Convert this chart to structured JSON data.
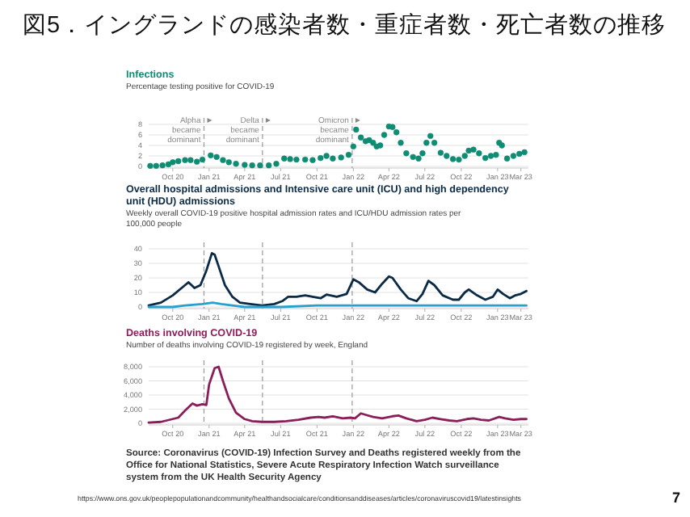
{
  "chart_data": [
    {
      "type": "other",
      "title": "図5．イングランドの感染者数・重症者数・死亡者数の推移"
    },
    {
      "type": "scatter",
      "title": "Infections",
      "subtitle": "Percentage testing positive for COVID-19",
      "xlim": [
        "2020-08-01",
        "2023-03-20"
      ],
      "xticks": [
        {
          "value": "2020-10-01",
          "label": "Oct 20"
        },
        {
          "value": "2021-01-01",
          "label": "Jan 21"
        },
        {
          "value": "2021-04-01",
          "label": "Apr 21"
        },
        {
          "value": "2021-07-01",
          "label": "Jul 21"
        },
        {
          "value": "2021-10-01",
          "label": "Oct 21"
        },
        {
          "value": "2022-01-01",
          "label": "Jan 22"
        },
        {
          "value": "2022-04-01",
          "label": "Apr 22"
        },
        {
          "value": "2022-07-01",
          "label": "Jul 22"
        },
        {
          "value": "2022-10-01",
          "label": "Oct 22"
        },
        {
          "value": "2023-01-01",
          "label": "Jan 23"
        },
        {
          "value": "2023-03-01",
          "label": "Mar 23"
        }
      ],
      "ylim": [
        0,
        8
      ],
      "yticks": [
        0,
        2,
        4,
        6,
        8
      ],
      "grid": "y",
      "marker": "circle",
      "ref_lines": [
        {
          "axis": "x",
          "value": "2020-12-19",
          "label": "Alpha became dominant",
          "line_style": "dashed",
          "color": "#999999"
        },
        {
          "axis": "x",
          "value": "2021-05-16",
          "label": "Delta became dominant",
          "line_style": "dashed",
          "color": "#999999"
        },
        {
          "axis": "x",
          "value": "2021-12-29",
          "label": "Omicron became dominant",
          "line_style": "dashed",
          "color": "#999999"
        }
      ],
      "series": [
        {
          "color": "#0f8c74",
          "x": [
            "2020-08-05",
            "2020-08-20",
            "2020-09-05",
            "2020-09-20",
            "2020-10-01",
            "2020-10-15",
            "2020-11-01",
            "2020-11-15",
            "2020-12-01",
            "2020-12-15",
            "2021-01-05",
            "2021-01-20",
            "2021-02-05",
            "2021-02-20",
            "2021-03-10",
            "2021-04-01",
            "2021-04-20",
            "2021-05-10",
            "2021-06-01",
            "2021-06-20",
            "2021-07-10",
            "2021-07-25",
            "2021-08-10",
            "2021-09-01",
            "2021-09-20",
            "2021-10-10",
            "2021-10-25",
            "2021-11-10",
            "2021-12-01",
            "2021-12-20",
            "2022-01-01",
            "2022-01-08",
            "2022-01-20",
            "2022-02-01",
            "2022-02-10",
            "2022-02-20",
            "2022-03-01",
            "2022-03-10",
            "2022-03-20",
            "2022-04-01",
            "2022-04-10",
            "2022-04-20",
            "2022-05-01",
            "2022-05-15",
            "2022-06-01",
            "2022-06-15",
            "2022-06-25",
            "2022-07-05",
            "2022-07-15",
            "2022-07-25",
            "2022-08-10",
            "2022-08-25",
            "2022-09-10",
            "2022-09-25",
            "2022-10-10",
            "2022-10-20",
            "2022-11-01",
            "2022-11-15",
            "2022-12-01",
            "2022-12-15",
            "2022-12-28",
            "2023-01-05",
            "2023-01-12",
            "2023-01-25",
            "2023-02-10",
            "2023-02-25",
            "2023-03-10"
          ],
          "values": [
            0.1,
            0.1,
            0.2,
            0.4,
            0.8,
            1.0,
            1.2,
            1.2,
            0.9,
            1.3,
            2.1,
            1.8,
            1.2,
            0.8,
            0.5,
            0.3,
            0.2,
            0.2,
            0.2,
            0.5,
            1.5,
            1.4,
            1.3,
            1.3,
            1.2,
            1.6,
            2.0,
            1.5,
            1.7,
            2.2,
            3.8,
            7.0,
            5.5,
            4.8,
            5.0,
            4.5,
            3.8,
            4.0,
            6.0,
            7.6,
            7.5,
            6.5,
            4.5,
            2.5,
            1.8,
            1.5,
            2.5,
            4.5,
            5.8,
            4.5,
            2.6,
            2.0,
            1.4,
            1.3,
            2.0,
            3.0,
            3.2,
            2.5,
            1.6,
            2.0,
            2.2,
            4.5,
            4.0,
            1.5,
            2.0,
            2.4,
            2.7
          ]
        }
      ]
    },
    {
      "type": "line",
      "title": "Overall hospital admissions and Intensive care unit (ICU) and high dependency unit (HDU) admissions",
      "subtitle": "Weekly overall COVID-19 positive hospital admission rates and ICU/HDU admission rates per 100,000 people",
      "xlim": [
        "2020-08-01",
        "2023-03-20"
      ],
      "xticks": [
        {
          "value": "2020-10-01",
          "label": "Oct 20"
        },
        {
          "value": "2021-01-01",
          "label": "Jan 21"
        },
        {
          "value": "2021-04-01",
          "label": "Apr 21"
        },
        {
          "value": "2021-07-01",
          "label": "Jul 21"
        },
        {
          "value": "2021-10-01",
          "label": "Oct 21"
        },
        {
          "value": "2022-01-01",
          "label": "Jan 22"
        },
        {
          "value": "2022-04-01",
          "label": "Apr 22"
        },
        {
          "value": "2022-07-01",
          "label": "Jul 22"
        },
        {
          "value": "2022-10-01",
          "label": "Oct 22"
        },
        {
          "value": "2023-01-01",
          "label": "Jan 23"
        },
        {
          "value": "2023-03-01",
          "label": "Mar 23"
        }
      ],
      "ylim": [
        0,
        40
      ],
      "yticks": [
        0,
        10,
        20,
        30,
        40
      ],
      "grid": "y",
      "line_style": "solid",
      "ref_lines": [
        {
          "axis": "x",
          "value": "2020-12-19",
          "line_style": "dashed",
          "color": "#999999"
        },
        {
          "axis": "x",
          "value": "2021-05-16",
          "line_style": "dashed",
          "color": "#999999"
        },
        {
          "axis": "x",
          "value": "2021-12-29",
          "line_style": "dashed",
          "color": "#999999"
        }
      ],
      "series": [
        {
          "color": "#0b2a45",
          "x": [
            "2020-08-01",
            "2020-09-01",
            "2020-10-01",
            "2020-11-01",
            "2020-11-10",
            "2020-11-25",
            "2020-12-10",
            "2020-12-25",
            "2021-01-08",
            "2021-01-15",
            "2021-01-25",
            "2021-02-10",
            "2021-03-01",
            "2021-03-20",
            "2021-04-15",
            "2021-05-15",
            "2021-06-15",
            "2021-07-05",
            "2021-07-20",
            "2021-08-10",
            "2021-09-01",
            "2021-09-20",
            "2021-10-10",
            "2021-10-25",
            "2021-11-20",
            "2021-12-15",
            "2022-01-01",
            "2022-01-15",
            "2022-02-05",
            "2022-02-25",
            "2022-03-15",
            "2022-04-01",
            "2022-04-10",
            "2022-05-01",
            "2022-05-20",
            "2022-06-10",
            "2022-06-25",
            "2022-07-10",
            "2022-07-25",
            "2022-08-15",
            "2022-09-10",
            "2022-09-25",
            "2022-10-10",
            "2022-10-20",
            "2022-11-10",
            "2022-12-01",
            "2022-12-20",
            "2023-01-01",
            "2023-01-15",
            "2023-02-01",
            "2023-02-15",
            "2023-03-01",
            "2023-03-15"
          ],
          "values": [
            1,
            3,
            8,
            15,
            17,
            13,
            15,
            25,
            37,
            36,
            28,
            15,
            7,
            3,
            2,
            1,
            2,
            4,
            7,
            7,
            8,
            7,
            6,
            8.5,
            7,
            9,
            19,
            17,
            12,
            10,
            16,
            21,
            20,
            12,
            6,
            4,
            9,
            18,
            15,
            8,
            5,
            5,
            10,
            12,
            8,
            5,
            7,
            12,
            9,
            6,
            8,
            9,
            11
          ]
        },
        {
          "color": "#27a0cc",
          "x": [
            "2020-08-01",
            "2020-10-01",
            "2020-11-01",
            "2020-12-15",
            "2021-01-10",
            "2021-02-01",
            "2021-03-01",
            "2021-04-01",
            "2021-07-01",
            "2021-10-01",
            "2022-01-01",
            "2022-04-01",
            "2022-07-01",
            "2022-10-01",
            "2023-01-01",
            "2023-03-15"
          ],
          "values": [
            0,
            0,
            1,
            2,
            3,
            2,
            1,
            0,
            0,
            1,
            1,
            1,
            1,
            1,
            1,
            1
          ]
        }
      ]
    },
    {
      "type": "line",
      "title": "Deaths involving COVID-19",
      "subtitle": "Number of deaths involving COVID-19 registered by week, England",
      "xlim": [
        "2020-08-01",
        "2023-03-20"
      ],
      "xticks": [
        {
          "value": "2020-10-01",
          "label": "Oct 20"
        },
        {
          "value": "2021-01-01",
          "label": "Jan 21"
        },
        {
          "value": "2021-04-01",
          "label": "Apr 21"
        },
        {
          "value": "2021-07-01",
          "label": "Jul 21"
        },
        {
          "value": "2021-10-01",
          "label": "Oct 21"
        },
        {
          "value": "2022-01-01",
          "label": "Jan 22"
        },
        {
          "value": "2022-04-01",
          "label": "Apr 22"
        },
        {
          "value": "2022-07-01",
          "label": "Jul 22"
        },
        {
          "value": "2022-10-01",
          "label": "Oct 22"
        },
        {
          "value": "2023-01-01",
          "label": "Jan 23"
        },
        {
          "value": "2023-03-01",
          "label": "Mar 23"
        }
      ],
      "ylim": [
        0,
        8000
      ],
      "yticks": [
        0,
        {
          "value": 2000,
          "label": "2,000"
        },
        {
          "value": 4000,
          "label": "4,000"
        },
        {
          "value": 6000,
          "label": "6,000"
        },
        {
          "value": 8000,
          "label": "8,000"
        }
      ],
      "grid": "y",
      "line_style": "solid",
      "ref_lines": [
        {
          "axis": "x",
          "value": "2020-12-19",
          "line_style": "dashed",
          "color": "#999999"
        },
        {
          "axis": "x",
          "value": "2021-05-16",
          "line_style": "dashed",
          "color": "#999999"
        },
        {
          "axis": "x",
          "value": "2021-12-29",
          "line_style": "dashed",
          "color": "#999999"
        }
      ],
      "series": [
        {
          "color": "#8c1d5b",
          "x": [
            "2020-08-01",
            "2020-09-01",
            "2020-10-15",
            "2020-11-01",
            "2020-11-20",
            "2020-12-01",
            "2020-12-15",
            "2020-12-25",
            "2021-01-01",
            "2021-01-15",
            "2021-01-25",
            "2021-02-05",
            "2021-02-20",
            "2021-03-10",
            "2021-04-01",
            "2021-04-20",
            "2021-05-15",
            "2021-06-15",
            "2021-07-15",
            "2021-08-15",
            "2021-09-15",
            "2021-10-05",
            "2021-10-20",
            "2021-11-10",
            "2021-12-05",
            "2021-12-25",
            "2022-01-05",
            "2022-01-20",
            "2022-02-01",
            "2022-02-20",
            "2022-03-15",
            "2022-04-10",
            "2022-04-25",
            "2022-05-15",
            "2022-06-10",
            "2022-07-01",
            "2022-07-20",
            "2022-08-10",
            "2022-09-01",
            "2022-09-20",
            "2022-10-15",
            "2022-11-01",
            "2022-11-20",
            "2022-12-10",
            "2023-01-05",
            "2023-01-20",
            "2023-02-10",
            "2023-03-01",
            "2023-03-15"
          ],
          "values": [
            100,
            200,
            800,
            1800,
            2800,
            2500,
            2700,
            2600,
            5500,
            7800,
            8000,
            6000,
            3500,
            1500,
            600,
            300,
            200,
            200,
            300,
            500,
            800,
            900,
            800,
            1000,
            700,
            800,
            700,
            1400,
            1200,
            900,
            700,
            1000,
            1100,
            700,
            300,
            500,
            800,
            600,
            400,
            300,
            600,
            700,
            500,
            400,
            900,
            700,
            500,
            600,
            600
          ]
        }
      ],
      "annotations": [
        "Source: Coronavirus (COVID-19) Infection Survey and Deaths registered weekly from the Office for National Statistics, Severe Acute Respiratory Infection Watch surveillance system from the UK Health Security Agency",
        "https://www.ons.gov.uk/peoplepopulationandcommunity/healthandsocialcare/conditionsanddiseases/articles/coronaviruscovid19/latestinsights",
        "7"
      ]
    }
  ]
}
